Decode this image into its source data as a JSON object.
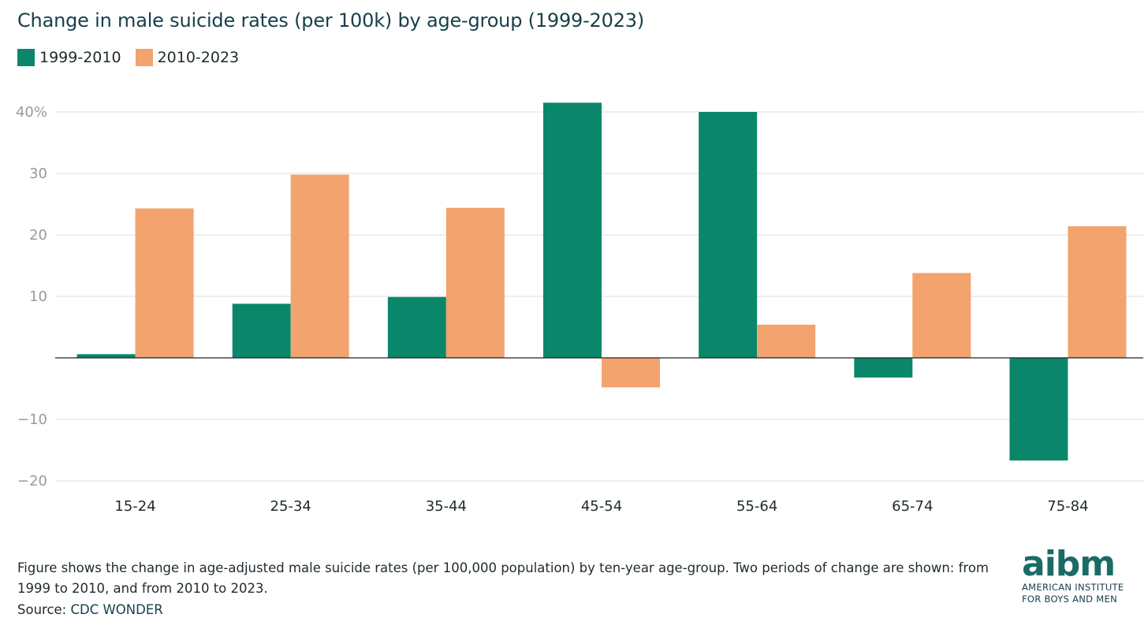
{
  "chart_data": {
    "type": "bar",
    "title": "Change in male suicide rates (per 100k) by age-group (1999-2023)",
    "categories": [
      "15-24",
      "25-34",
      "35-44",
      "45-54",
      "55-64",
      "65-74",
      "75-84"
    ],
    "series": [
      {
        "name": "1999-2010",
        "color": "#0a876a",
        "values": [
          0.6,
          8.8,
          9.9,
          41.5,
          40.0,
          -3.2,
          -16.7
        ]
      },
      {
        "name": "2010-2023",
        "color": "#f2a36e",
        "values": [
          24.3,
          29.8,
          24.4,
          -4.8,
          5.4,
          13.8,
          21.4
        ]
      }
    ],
    "y_ticks": [
      {
        "value": 40,
        "label": "40%"
      },
      {
        "value": 30,
        "label": "30"
      },
      {
        "value": 20,
        "label": "20"
      },
      {
        "value": 10,
        "label": "10"
      },
      {
        "value": -10,
        "label": "−10"
      },
      {
        "value": -20,
        "label": "−20"
      }
    ],
    "ylim": [
      -20,
      40
    ],
    "xlabel": "",
    "ylabel": "",
    "grid": true,
    "legend_position": "top-left"
  },
  "footnote": "Figure shows the change in age-adjusted male suicide rates (per 100,000 population) by ten-year age-group. Two periods of change are shown: from 1999 to 2010, and from 2010 to 2023.",
  "source": {
    "prefix": "Source: ",
    "link_text": "CDC WONDER"
  },
  "logo": {
    "mark": "aibm",
    "line1": "AMERICAN INSTITUTE",
    "line2": "FOR BOYS AND MEN"
  }
}
